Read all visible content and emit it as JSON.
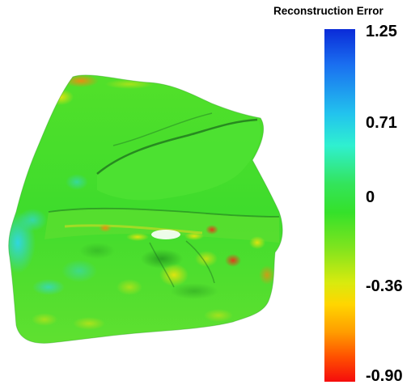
{
  "colorbar": {
    "title": "Reconstruction Error",
    "ticks": [
      "1.25",
      "0.71",
      "0",
      "-0.36",
      "-0.90"
    ],
    "colors": {
      "max": "#0a2bd8",
      "mid_high": "#22c3ee",
      "zero": "#35e12a",
      "mid_low": "#ffd600",
      "min": "#f50c0c"
    }
  },
  "surface": {
    "base_color": "#3fe02a"
  }
}
